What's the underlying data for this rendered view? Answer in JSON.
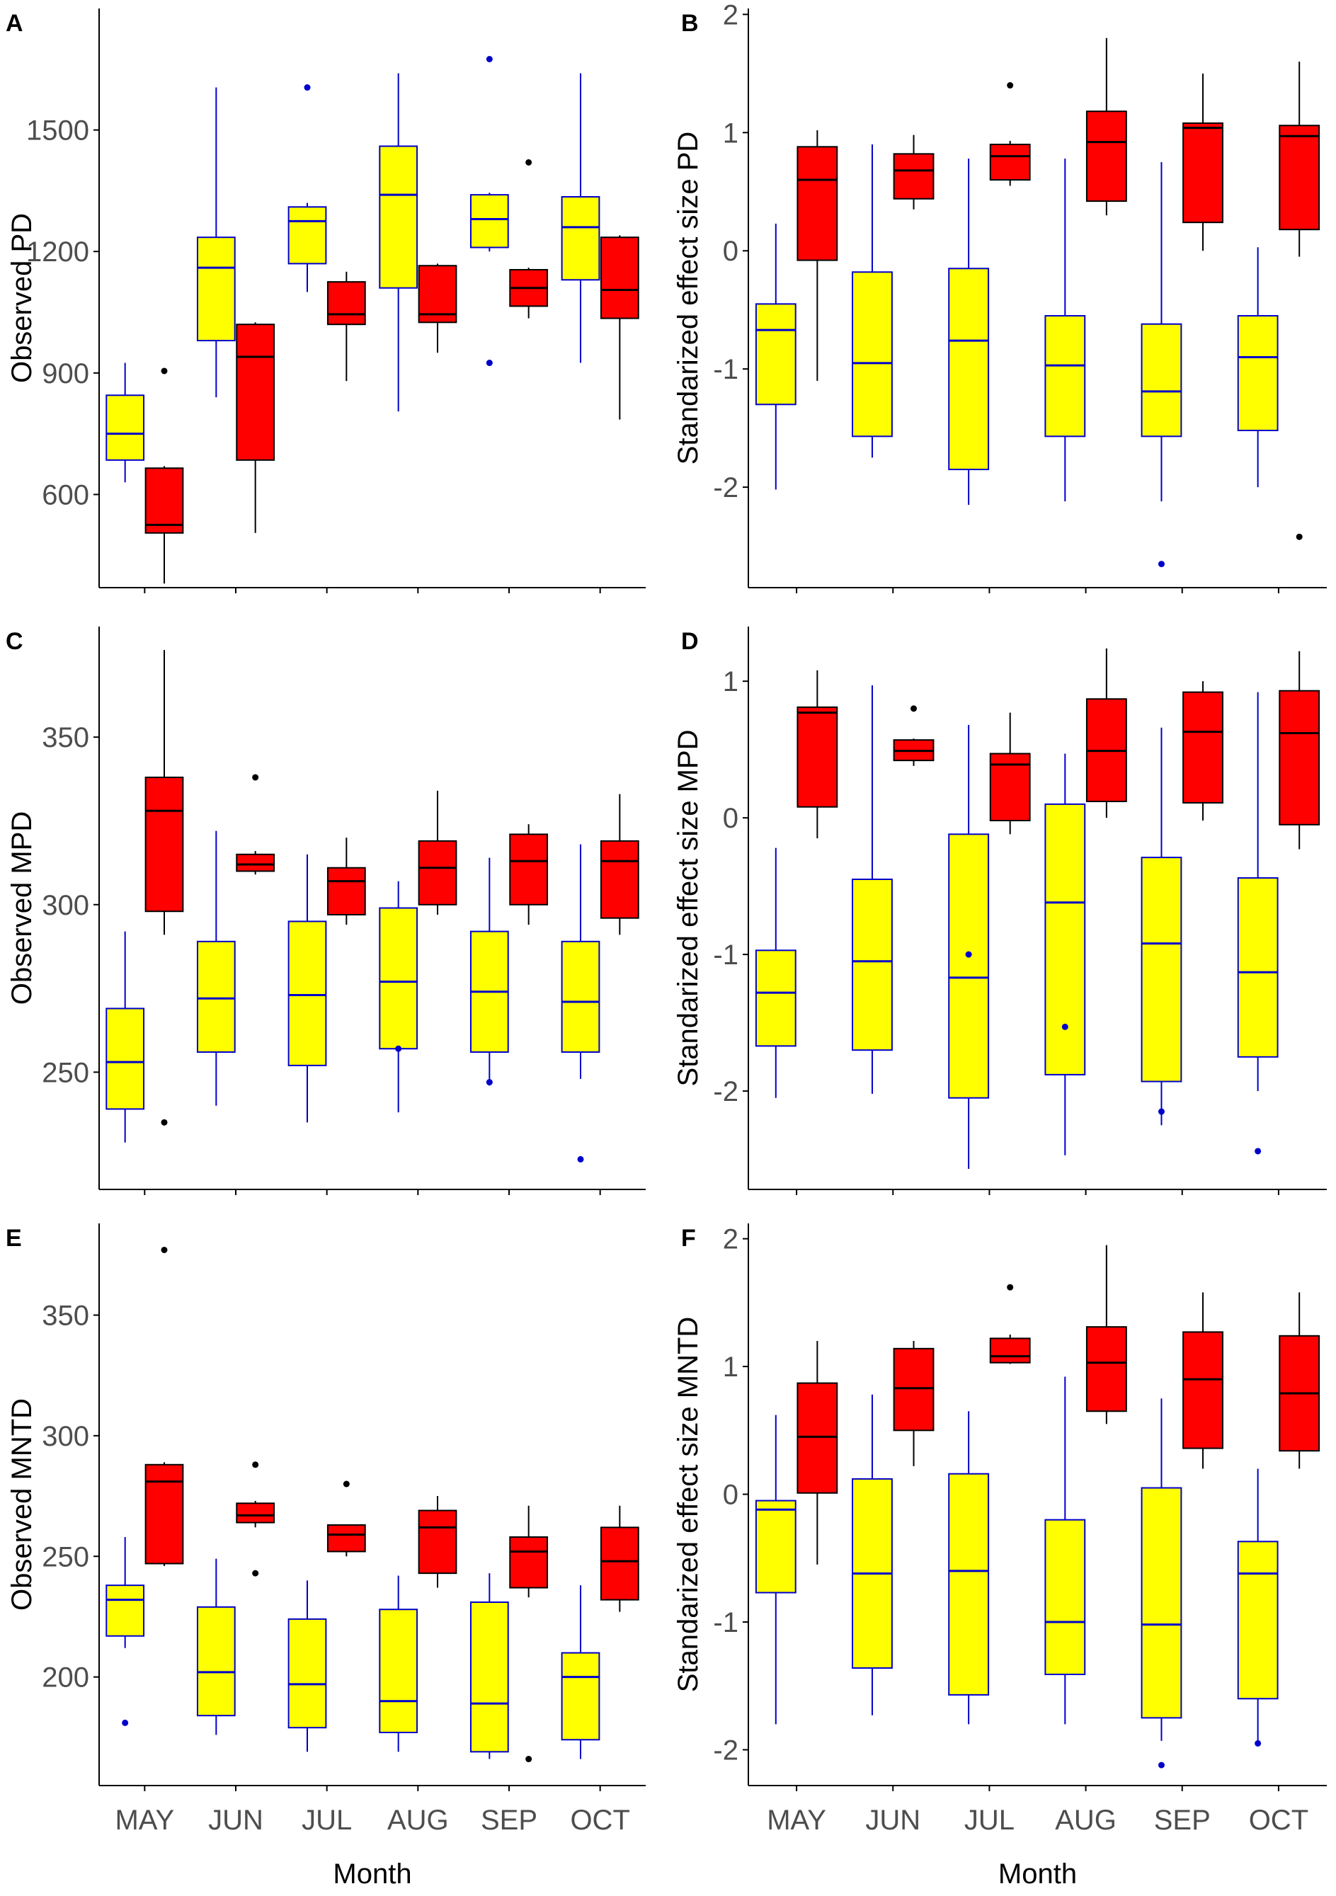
{
  "colors": {
    "group_yellow_fill": "#ffff00",
    "group_yellow_stroke": "#0000cd",
    "group_red_fill": "#ff0000",
    "group_red_stroke": "#000000",
    "axis": "#000000",
    "tick_text": "#4d4d4d"
  },
  "chart_data": [
    {
      "id": "A",
      "type": "boxplot",
      "title": "",
      "xlabel": "",
      "ylabel": "Observed PD",
      "categories": [
        "MAY",
        "JUN",
        "JUL",
        "AUG",
        "SEP",
        "OCT"
      ],
      "ylim": [
        370,
        1800
      ],
      "yticks": [
        600,
        900,
        1200,
        1500
      ],
      "series": [
        {
          "name": "yellow",
          "color": "#ffff00",
          "stroke": "#0000cd",
          "boxes": [
            {
              "lo": 630,
              "q1": 685,
              "med": 750,
              "q3": 845,
              "hi": 925,
              "out": []
            },
            {
              "lo": 840,
              "q1": 980,
              "med": 1160,
              "q3": 1235,
              "hi": 1605,
              "out": []
            },
            {
              "lo": 1100,
              "q1": 1170,
              "med": 1275,
              "q3": 1310,
              "hi": 1320,
              "out": [
                1605
              ]
            },
            {
              "lo": 805,
              "q1": 1110,
              "med": 1340,
              "q3": 1460,
              "hi": 1640,
              "out": []
            },
            {
              "lo": 1200,
              "q1": 1210,
              "med": 1280,
              "q3": 1340,
              "hi": 1345,
              "out": [
                1675,
                925
              ]
            },
            {
              "lo": 925,
              "q1": 1130,
              "med": 1260,
              "q3": 1335,
              "hi": 1640,
              "out": []
            }
          ]
        },
        {
          "name": "red",
          "color": "#ff0000",
          "stroke": "#000000",
          "boxes": [
            {
              "lo": 380,
              "q1": 505,
              "med": 525,
              "q3": 665,
              "hi": 670,
              "out": [
                905
              ]
            },
            {
              "lo": 505,
              "q1": 685,
              "med": 940,
              "q3": 1020,
              "hi": 1025,
              "out": []
            },
            {
              "lo": 880,
              "q1": 1020,
              "med": 1045,
              "q3": 1125,
              "hi": 1150,
              "out": []
            },
            {
              "lo": 950,
              "q1": 1025,
              "med": 1045,
              "q3": 1165,
              "hi": 1170,
              "out": []
            },
            {
              "lo": 1035,
              "q1": 1065,
              "med": 1110,
              "q3": 1155,
              "hi": 1160,
              "out": [
                1420
              ]
            },
            {
              "lo": 785,
              "q1": 1035,
              "med": 1105,
              "q3": 1235,
              "hi": 1240,
              "out": []
            }
          ]
        }
      ]
    },
    {
      "id": "B",
      "type": "boxplot",
      "title": "",
      "xlabel": "",
      "ylabel": "Standarized effect size PD",
      "categories": [
        "MAY",
        "JUN",
        "JUL",
        "AUG",
        "SEP",
        "OCT"
      ],
      "ylim": [
        -2.85,
        2.05
      ],
      "yticks": [
        -2,
        -1,
        0,
        1,
        2
      ],
      "series": [
        {
          "name": "yellow",
          "color": "#ffff00",
          "stroke": "#0000cd",
          "boxes": [
            {
              "lo": -2.02,
              "q1": -1.3,
              "med": -0.67,
              "q3": -0.45,
              "hi": 0.23,
              "out": []
            },
            {
              "lo": -1.75,
              "q1": -1.57,
              "med": -0.95,
              "q3": -0.18,
              "hi": 0.9,
              "out": []
            },
            {
              "lo": -2.15,
              "q1": -1.85,
              "med": -0.76,
              "q3": -0.15,
              "hi": 0.78,
              "out": []
            },
            {
              "lo": -2.12,
              "q1": -1.57,
              "med": -0.97,
              "q3": -0.55,
              "hi": 0.78,
              "out": []
            },
            {
              "lo": -2.12,
              "q1": -1.57,
              "med": -1.19,
              "q3": -0.62,
              "hi": 0.75,
              "out": [
                -2.65
              ]
            },
            {
              "lo": -2.0,
              "q1": -1.52,
              "med": -0.9,
              "q3": -0.55,
              "hi": 0.03,
              "out": []
            }
          ]
        },
        {
          "name": "red",
          "color": "#ff0000",
          "stroke": "#000000",
          "boxes": [
            {
              "lo": -1.1,
              "q1": -0.08,
              "med": 0.6,
              "q3": 0.88,
              "hi": 1.02,
              "out": []
            },
            {
              "lo": 0.35,
              "q1": 0.44,
              "med": 0.68,
              "q3": 0.82,
              "hi": 0.98,
              "out": []
            },
            {
              "lo": 0.55,
              "q1": 0.6,
              "med": 0.8,
              "q3": 0.9,
              "hi": 0.93,
              "out": [
                1.4
              ]
            },
            {
              "lo": 0.3,
              "q1": 0.42,
              "med": 0.92,
              "q3": 1.18,
              "hi": 1.8,
              "out": []
            },
            {
              "lo": 0.0,
              "q1": 0.24,
              "med": 1.04,
              "q3": 1.08,
              "hi": 1.5,
              "out": []
            },
            {
              "lo": -0.05,
              "q1": 0.18,
              "med": 0.97,
              "q3": 1.06,
              "hi": 1.6,
              "out": [
                -2.42
              ]
            }
          ]
        }
      ]
    },
    {
      "id": "C",
      "type": "boxplot",
      "title": "",
      "xlabel": "",
      "ylabel": "Observed MPD",
      "categories": [
        "MAY",
        "JUN",
        "JUL",
        "AUG",
        "SEP",
        "OCT"
      ],
      "ylim": [
        215,
        383
      ],
      "yticks": [
        250,
        300,
        350
      ],
      "series": [
        {
          "name": "yellow",
          "color": "#ffff00",
          "stroke": "#0000cd",
          "boxes": [
            {
              "lo": 229,
              "q1": 239,
              "med": 253,
              "q3": 269,
              "hi": 292,
              "out": []
            },
            {
              "lo": 240,
              "q1": 256,
              "med": 272,
              "q3": 289,
              "hi": 322,
              "out": []
            },
            {
              "lo": 235,
              "q1": 252,
              "med": 273,
              "q3": 295,
              "hi": 315,
              "out": []
            },
            {
              "lo": 238,
              "q1": 257,
              "med": 277,
              "q3": 299,
              "hi": 307,
              "out": [
                257
              ]
            },
            {
              "lo": 246,
              "q1": 256,
              "med": 274,
              "q3": 292,
              "hi": 314,
              "out": [
                247
              ]
            },
            {
              "lo": 248,
              "q1": 256,
              "med": 271,
              "q3": 289,
              "hi": 318,
              "out": [
                224
              ]
            }
          ]
        },
        {
          "name": "red",
          "color": "#ff0000",
          "stroke": "#000000",
          "boxes": [
            {
              "lo": 291,
              "q1": 298,
              "med": 328,
              "q3": 338,
              "hi": 376,
              "out": [
                235
              ]
            },
            {
              "lo": 309,
              "q1": 310,
              "med": 312,
              "q3": 315,
              "hi": 316,
              "out": [
                338
              ]
            },
            {
              "lo": 294,
              "q1": 297,
              "med": 307,
              "q3": 311,
              "hi": 320,
              "out": []
            },
            {
              "lo": 297,
              "q1": 300,
              "med": 311,
              "q3": 319,
              "hi": 334,
              "out": []
            },
            {
              "lo": 294,
              "q1": 300,
              "med": 313,
              "q3": 321,
              "hi": 324,
              "out": []
            },
            {
              "lo": 291,
              "q1": 296,
              "med": 313,
              "q3": 319,
              "hi": 333,
              "out": []
            }
          ]
        }
      ]
    },
    {
      "id": "D",
      "type": "boxplot",
      "title": "",
      "xlabel": "",
      "ylabel": "Standarized effect size MPD",
      "categories": [
        "MAY",
        "JUN",
        "JUL",
        "AUG",
        "SEP",
        "OCT"
      ],
      "ylim": [
        -2.72,
        1.4
      ],
      "yticks": [
        -2,
        -1,
        0,
        1
      ],
      "series": [
        {
          "name": "yellow",
          "color": "#ffff00",
          "stroke": "#0000cd",
          "boxes": [
            {
              "lo": -2.05,
              "q1": -1.67,
              "med": -1.28,
              "q3": -0.97,
              "hi": -0.22,
              "out": []
            },
            {
              "lo": -2.02,
              "q1": -1.7,
              "med": -1.05,
              "q3": -0.45,
              "hi": 0.97,
              "out": []
            },
            {
              "lo": -2.57,
              "q1": -2.05,
              "med": -1.17,
              "q3": -0.12,
              "hi": 0.68,
              "out": [
                -1.0
              ]
            },
            {
              "lo": -2.47,
              "q1": -1.88,
              "med": -0.62,
              "q3": 0.1,
              "hi": 0.47,
              "out": [
                -1.53
              ]
            },
            {
              "lo": -2.25,
              "q1": -1.93,
              "med": -0.92,
              "q3": -0.29,
              "hi": 0.66,
              "out": [
                -2.15
              ]
            },
            {
              "lo": -2.0,
              "q1": -1.75,
              "med": -1.13,
              "q3": -0.44,
              "hi": 0.92,
              "out": [
                -2.44
              ]
            }
          ]
        },
        {
          "name": "red",
          "color": "#ff0000",
          "stroke": "#000000",
          "boxes": [
            {
              "lo": -0.15,
              "q1": 0.08,
              "med": 0.77,
              "q3": 0.81,
              "hi": 1.08,
              "out": []
            },
            {
              "lo": 0.38,
              "q1": 0.42,
              "med": 0.49,
              "q3": 0.57,
              "hi": 0.58,
              "out": [
                0.8
              ]
            },
            {
              "lo": -0.12,
              "q1": -0.02,
              "med": 0.39,
              "q3": 0.47,
              "hi": 0.77,
              "out": []
            },
            {
              "lo": 0.0,
              "q1": 0.12,
              "med": 0.49,
              "q3": 0.87,
              "hi": 1.24,
              "out": []
            },
            {
              "lo": -0.02,
              "q1": 0.11,
              "med": 0.63,
              "q3": 0.92,
              "hi": 1.0,
              "out": []
            },
            {
              "lo": -0.23,
              "q1": -0.05,
              "med": 0.62,
              "q3": 0.93,
              "hi": 1.22,
              "out": []
            }
          ]
        }
      ]
    },
    {
      "id": "E",
      "type": "boxplot",
      "title": "",
      "xlabel": "Month",
      "ylabel": "Observed MNTD",
      "categories": [
        "MAY",
        "JUN",
        "JUL",
        "AUG",
        "SEP",
        "OCT"
      ],
      "ylim": [
        155,
        388
      ],
      "yticks": [
        200,
        250,
        300,
        350
      ],
      "series": [
        {
          "name": "yellow",
          "color": "#ffff00",
          "stroke": "#0000cd",
          "boxes": [
            {
              "lo": 212,
              "q1": 217,
              "med": 232,
              "q3": 238,
              "hi": 258,
              "out": [
                181
              ]
            },
            {
              "lo": 176,
              "q1": 184,
              "med": 202,
              "q3": 229,
              "hi": 249,
              "out": []
            },
            {
              "lo": 169,
              "q1": 179,
              "med": 197,
              "q3": 224,
              "hi": 240,
              "out": []
            },
            {
              "lo": 169,
              "q1": 177,
              "med": 190,
              "q3": 228,
              "hi": 242,
              "out": []
            },
            {
              "lo": 166,
              "q1": 169,
              "med": 189,
              "q3": 231,
              "hi": 243,
              "out": []
            },
            {
              "lo": 166,
              "q1": 174,
              "med": 200,
              "q3": 210,
              "hi": 238,
              "out": []
            }
          ]
        },
        {
          "name": "red",
          "color": "#ff0000",
          "stroke": "#000000",
          "boxes": [
            {
              "lo": 246,
              "q1": 247,
              "med": 281,
              "q3": 288,
              "hi": 289,
              "out": [
                377
              ]
            },
            {
              "lo": 262,
              "q1": 264,
              "med": 267,
              "q3": 272,
              "hi": 273,
              "out": [
                288,
                243
              ]
            },
            {
              "lo": 250,
              "q1": 252,
              "med": 259,
              "q3": 263,
              "hi": 263,
              "out": [
                280
              ]
            },
            {
              "lo": 237,
              "q1": 243,
              "med": 262,
              "q3": 269,
              "hi": 275,
              "out": []
            },
            {
              "lo": 233,
              "q1": 237,
              "med": 252,
              "q3": 258,
              "hi": 271,
              "out": [
                166
              ]
            },
            {
              "lo": 227,
              "q1": 232,
              "med": 248,
              "q3": 262,
              "hi": 271,
              "out": []
            }
          ]
        }
      ]
    },
    {
      "id": "F",
      "type": "boxplot",
      "title": "",
      "xlabel": "Month",
      "ylabel": "Standarized effect size MNTD",
      "categories": [
        "MAY",
        "JUN",
        "JUL",
        "AUG",
        "SEP",
        "OCT"
      ],
      "ylim": [
        -2.28,
        2.12
      ],
      "yticks": [
        -2,
        -1,
        0,
        1,
        2
      ],
      "series": [
        {
          "name": "yellow",
          "color": "#ffff00",
          "stroke": "#0000cd",
          "boxes": [
            {
              "lo": -1.8,
              "q1": -0.77,
              "med": -0.12,
              "q3": -0.05,
              "hi": 0.62,
              "out": []
            },
            {
              "lo": -1.73,
              "q1": -1.36,
              "med": -0.62,
              "q3": 0.12,
              "hi": 0.78,
              "out": []
            },
            {
              "lo": -1.8,
              "q1": -1.57,
              "med": -0.6,
              "q3": 0.16,
              "hi": 0.65,
              "out": []
            },
            {
              "lo": -1.8,
              "q1": -1.41,
              "med": -1.0,
              "q3": -0.2,
              "hi": 0.92,
              "out": []
            },
            {
              "lo": -1.93,
              "q1": -1.75,
              "med": -1.02,
              "q3": 0.05,
              "hi": 0.75,
              "out": [
                -2.12
              ]
            },
            {
              "lo": -1.93,
              "q1": -1.6,
              "med": -0.62,
              "q3": -0.37,
              "hi": 0.2,
              "out": [
                -1.95
              ]
            }
          ]
        },
        {
          "name": "red",
          "color": "#ff0000",
          "stroke": "#000000",
          "boxes": [
            {
              "lo": -0.55,
              "q1": 0.01,
              "med": 0.45,
              "q3": 0.87,
              "hi": 1.2,
              "out": []
            },
            {
              "lo": 0.22,
              "q1": 0.5,
              "med": 0.83,
              "q3": 1.14,
              "hi": 1.2,
              "out": []
            },
            {
              "lo": 1.02,
              "q1": 1.03,
              "med": 1.08,
              "q3": 1.22,
              "hi": 1.25,
              "out": [
                1.62
              ]
            },
            {
              "lo": 0.55,
              "q1": 0.65,
              "med": 1.03,
              "q3": 1.31,
              "hi": 1.95,
              "out": []
            },
            {
              "lo": 0.2,
              "q1": 0.36,
              "med": 0.9,
              "q3": 1.27,
              "hi": 1.58,
              "out": []
            },
            {
              "lo": 0.2,
              "q1": 0.34,
              "med": 0.79,
              "q3": 1.24,
              "hi": 1.58,
              "out": []
            }
          ]
        }
      ]
    }
  ]
}
